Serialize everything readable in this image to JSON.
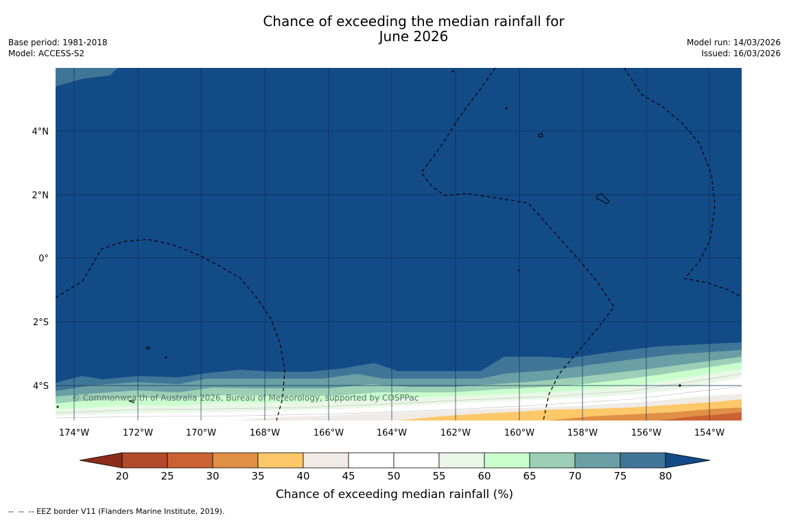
{
  "title": {
    "line1": "Chance of exceeding the median rainfall for",
    "line2": "June 2026"
  },
  "meta_left": {
    "base_period": "Base period: 1981-2018",
    "model": "Model: ACCESS-S2"
  },
  "meta_right": {
    "model_run": "Model run: 14/03/2026",
    "issued": "Issued: 16/03/2026"
  },
  "map": {
    "background_color": "#134b87",
    "lat_labels": [
      "4°N",
      "2°N",
      "0°",
      "2°S",
      "4°S"
    ],
    "lon_labels": [
      "174°W",
      "172°W",
      "170°W",
      "168°W",
      "166°W",
      "164°W",
      "162°W",
      "160°W",
      "158°W",
      "156°W",
      "154°W"
    ],
    "watermark": "© Commonwealth of Australia 2026, Bureau of Meteorology, supported by COSPPac"
  },
  "colorbar": {
    "title": "Chance of exceeding median rainfall (%)",
    "ticks": [
      "20",
      "25",
      "30",
      "35",
      "40",
      "45",
      "50",
      "55",
      "60",
      "65",
      "70",
      "75",
      "80"
    ],
    "colors": [
      "#8c2d19",
      "#b24a29",
      "#cc6234",
      "#e08f47",
      "#fcc86a",
      "#f0ebe6",
      "#ffffff",
      "#ffffff",
      "#eaf7e7",
      "#caffcd",
      "#9ccfb6",
      "#6a9fa5",
      "#3f7698",
      "#134b87"
    ]
  },
  "footer": "--  --  -- EEZ border V11 (Flanders Marine Institute, 2019)."
}
